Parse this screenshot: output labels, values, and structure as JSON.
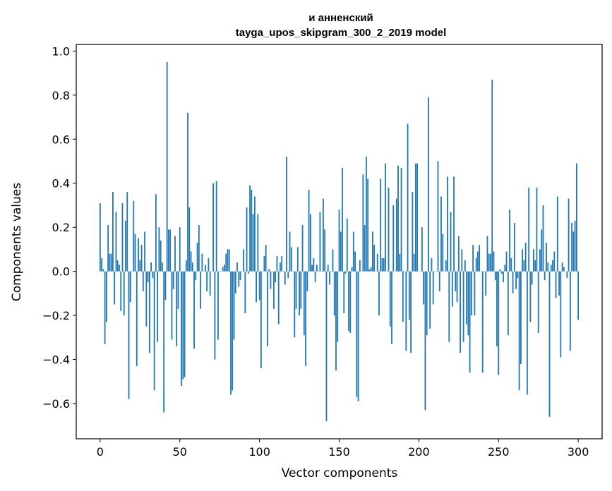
{
  "chart_data": {
    "type": "bar",
    "title": "и анненский",
    "subtitle": "tayga_upos_skipgram_300_2_2019 model",
    "xlabel": "Vector components",
    "ylabel": "Components values",
    "xlim": [
      -15,
      315
    ],
    "ylim": [
      -0.76,
      1.03
    ],
    "xticks": [
      0,
      50,
      100,
      150,
      200,
      250,
      300
    ],
    "yticks": [
      -0.6,
      -0.4,
      -0.2,
      0.0,
      0.2,
      0.4,
      0.6,
      0.8,
      1.0
    ],
    "xtick_labels": [
      "0",
      "50",
      "100",
      "150",
      "200",
      "250",
      "300"
    ],
    "ytick_labels": [
      "−0.6",
      "−0.4",
      "−0.2",
      "0.0",
      "0.2",
      "0.4",
      "0.6",
      "0.8",
      "1.0"
    ],
    "bar_color": "#1f77b4",
    "grid": false,
    "legend": "none",
    "values": [
      0.31,
      0.06,
      0.01,
      -0.33,
      -0.23,
      0.21,
      0.08,
      0.08,
      0.36,
      -0.15,
      0.27,
      0.05,
      0.03,
      -0.18,
      0.31,
      -0.2,
      0.23,
      0.36,
      -0.58,
      -0.14,
      0.0,
      0.32,
      0.17,
      -0.43,
      0.15,
      0.05,
      0.12,
      -0.09,
      0.18,
      -0.25,
      -0.05,
      -0.37,
      0.04,
      -0.03,
      -0.54,
      0.35,
      -0.32,
      0.2,
      0.14,
      0.04,
      -0.64,
      -0.13,
      0.95,
      0.19,
      0.19,
      -0.31,
      -0.08,
      0.16,
      -0.34,
      -0.17,
      0.2,
      -0.52,
      -0.49,
      -0.48,
      0.05,
      0.72,
      0.29,
      0.09,
      0.04,
      -0.35,
      -0.04,
      0.13,
      0.21,
      -0.17,
      0.08,
      0.0,
      0.03,
      -0.09,
      0.06,
      -0.11,
      0.0,
      0.4,
      -0.4,
      0.41,
      -0.31,
      0.0,
      0.0,
      0.02,
      0.03,
      0.08,
      0.1,
      0.1,
      -0.56,
      -0.54,
      -0.31,
      -0.1,
      0.04,
      -0.07,
      -0.04,
      0.0,
      0.1,
      -0.19,
      0.29,
      -0.01,
      0.39,
      0.37,
      0.26,
      0.34,
      -0.14,
      0.26,
      -0.13,
      -0.44,
      0.0,
      0.07,
      0.12,
      -0.34,
      0.01,
      -0.08,
      0.0,
      -0.17,
      -0.05,
      0.07,
      -0.24,
      0.04,
      0.07,
      0.0,
      -0.06,
      0.52,
      -0.03,
      0.18,
      0.11,
      0.0,
      -0.3,
      -0.17,
      0.11,
      -0.2,
      -0.17,
      0.21,
      -0.29,
      -0.43,
      -0.09,
      0.37,
      0.26,
      0.03,
      0.06,
      -0.05,
      0.03,
      0.0,
      0.27,
      0.0,
      0.33,
      0.19,
      -0.68,
      0.03,
      -0.06,
      0.0,
      0.1,
      -0.2,
      -0.45,
      -0.32,
      0.28,
      0.18,
      0.47,
      -0.19,
      -0.01,
      0.24,
      -0.27,
      -0.28,
      0.02,
      0.18,
      0.09,
      -0.57,
      -0.59,
      0.05,
      0.0,
      0.44,
      0.21,
      0.52,
      0.42,
      0.01,
      0.02,
      0.18,
      0.12,
      0.0,
      0.08,
      -0.2,
      0.42,
      0.06,
      0.06,
      0.49,
      0.0,
      0.38,
      -0.25,
      -0.33,
      0.3,
      0.0,
      0.33,
      0.48,
      0.08,
      0.47,
      -0.23,
      0.0,
      -0.36,
      0.67,
      -0.22,
      -0.37,
      0.36,
      0.08,
      0.49,
      0.49,
      0.0,
      0.0,
      0.2,
      -0.15,
      -0.63,
      -0.29,
      0.79,
      -0.26,
      0.06,
      -0.15,
      0.0,
      0.0,
      0.5,
      -0.09,
      0.34,
      0.17,
      0.0,
      0.05,
      0.43,
      -0.32,
      0.27,
      -0.16,
      0.43,
      -0.09,
      -0.14,
      0.16,
      -0.37,
      0.1,
      -0.32,
      0.05,
      -0.24,
      -0.29,
      -0.46,
      -0.2,
      0.12,
      -0.2,
      0.06,
      0.09,
      0.12,
      0.0,
      -0.46,
      0.0,
      -0.11,
      0.16,
      0.08,
      0.08,
      0.87,
      0.09,
      -0.04,
      -0.34,
      -0.47,
      0.01,
      -0.01,
      -0.05,
      0.03,
      0.09,
      -0.29,
      0.28,
      0.06,
      -0.1,
      0.22,
      -0.08,
      -0.03,
      -0.54,
      -0.42,
      0.1,
      0.05,
      0.13,
      -0.56,
      0.38,
      -0.23,
      -0.06,
      0.1,
      0.05,
      0.38,
      -0.28,
      0.1,
      0.19,
      0.3,
      -0.04,
      0.13,
      0.04,
      -0.66,
      0.03,
      0.05,
      0.09,
      -0.12,
      0.34,
      -0.11,
      -0.39,
      0.04,
      0.02,
      0.0,
      -0.03,
      0.33,
      -0.36,
      0.22,
      0.18,
      0.23,
      0.49,
      -0.22
    ]
  }
}
